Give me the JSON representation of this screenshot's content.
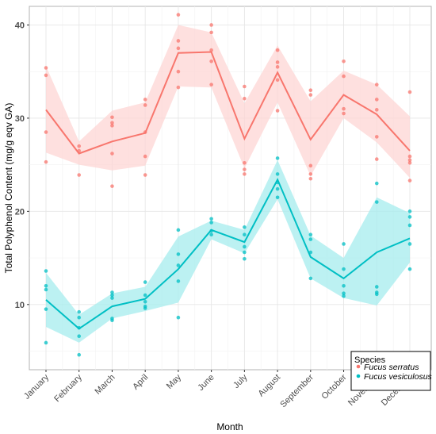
{
  "chart_data": {
    "type": "line",
    "xlabel": "Month",
    "ylabel": "Total Polyphenol Content (mg/g eqv GA)",
    "categories": [
      "January",
      "February",
      "March",
      "April",
      "May",
      "June",
      "July",
      "August",
      "September",
      "October",
      "November",
      "December"
    ],
    "ylim": [
      3,
      42
    ],
    "yticks": [
      10,
      20,
      30,
      40
    ],
    "grid": true,
    "legend_position": "bottom-right",
    "legend_title": "Species",
    "series": [
      {
        "name": "Fucus serratus",
        "color": "#f8766d",
        "band_color": "#fdd6d4",
        "mean": [
          30.9,
          26.2,
          27.5,
          28.4,
          37.0,
          37.1,
          27.8,
          34.9,
          27.7,
          32.5,
          30.4,
          26.5
        ],
        "lower": [
          26.3,
          25.0,
          24.4,
          24.9,
          33.4,
          33.3,
          24.6,
          31.7,
          23.8,
          30.0,
          27.4,
          23.6
        ],
        "upper": [
          35.6,
          27.5,
          30.8,
          31.7,
          40.0,
          39.2,
          31.6,
          37.8,
          31.8,
          35.1,
          33.6,
          30.2
        ],
        "points": [
          [
            35.4,
            34.6,
            28.5,
            25.3
          ],
          [
            27.0,
            26.5,
            23.9
          ],
          [
            30.1,
            29.5,
            29.2,
            26.2,
            22.7
          ],
          [
            32.0,
            31.4,
            28.5,
            25.9,
            23.9
          ],
          [
            41.1,
            38.3,
            37.5,
            35.0,
            33.3
          ],
          [
            40.0,
            39.2,
            37.3,
            36.1,
            33.6
          ],
          [
            33.4,
            32.1,
            25.2,
            24.5,
            24.0
          ],
          [
            37.3,
            36.0,
            35.5,
            34.1,
            30.8
          ],
          [
            33.0,
            32.5,
            24.9,
            24.0,
            23.5
          ],
          [
            36.1,
            34.5,
            31.0,
            30.5
          ],
          [
            33.6,
            32.0,
            30.9,
            28.0,
            25.6
          ],
          [
            32.8,
            25.9,
            25.5,
            25.2,
            23.3
          ]
        ]
      },
      {
        "name": "Fucus vesiculosus",
        "color": "#00bfc4",
        "band_color": "#a6eced",
        "mean": [
          10.5,
          7.4,
          9.8,
          10.6,
          13.8,
          18.0,
          16.7,
          23.4,
          15.1,
          12.8,
          15.6,
          17.1
        ],
        "lower": [
          7.6,
          5.9,
          8.5,
          9.3,
          10.2,
          17.0,
          15.5,
          21.3,
          12.8,
          10.7,
          9.9,
          14.5
        ],
        "upper": [
          13.4,
          8.9,
          11.2,
          11.9,
          17.3,
          19.0,
          18.0,
          25.5,
          17.4,
          15.0,
          21.5,
          19.8
        ],
        "points": [
          [
            13.6,
            12.0,
            11.6,
            9.5,
            5.9
          ],
          [
            9.2,
            8.6,
            7.5,
            6.6,
            4.6
          ],
          [
            11.3,
            11.0,
            10.7,
            8.5,
            8.3
          ],
          [
            12.4,
            11.0,
            10.3,
            9.8,
            9.6
          ],
          [
            18.0,
            15.4,
            14.2,
            12.5,
            8.6
          ],
          [
            19.2,
            18.8,
            17.9,
            17.5
          ],
          [
            18.3,
            17.5,
            16.2,
            15.6,
            14.9
          ],
          [
            25.7,
            24.0,
            23.1,
            22.4,
            21.5
          ],
          [
            17.5,
            17.0,
            15.6,
            12.8
          ],
          [
            16.5,
            13.8,
            12.0,
            11.2,
            10.9
          ],
          [
            23.0,
            21.0,
            11.9,
            11.3,
            11.1
          ],
          [
            20.0,
            19.4,
            18.5,
            16.5,
            13.8
          ]
        ]
      }
    ]
  }
}
